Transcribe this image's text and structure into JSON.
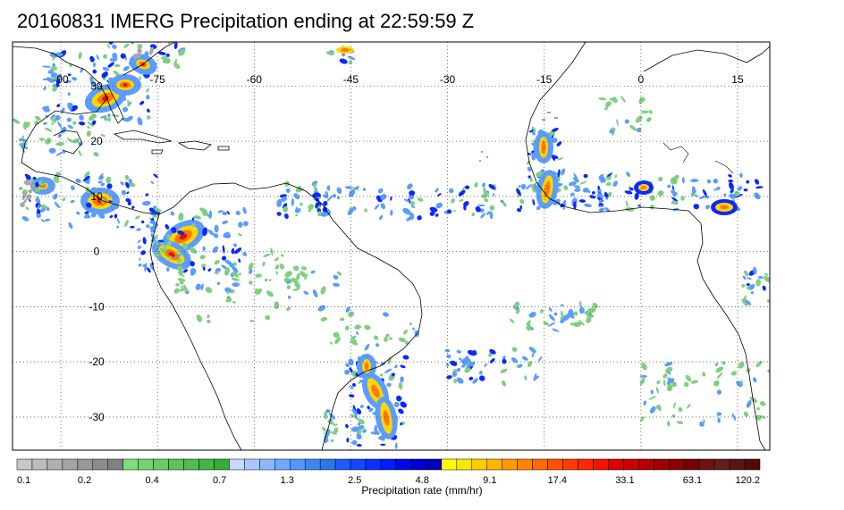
{
  "title": "20160831 IMERG Precipitation ending at 22:59:59 Z",
  "map": {
    "lon_range": [
      -97.5,
      20
    ],
    "lat_range": [
      -36,
      38
    ],
    "lon_labels": [
      "-90",
      "-75",
      "-60",
      "-45",
      "-30",
      "-15",
      "0",
      "15"
    ],
    "lat_labels": [
      "30",
      "20",
      "10",
      "0",
      "-10",
      "-20",
      "-30"
    ],
    "grid": true,
    "coast_color": "#000000"
  },
  "colorbar": {
    "title": "Precipitation rate (mm/hr)",
    "tick_labels": [
      "0.1",
      "0.2",
      "0.4",
      "0.7",
      "1.3",
      "2.5",
      "4.8",
      "9.1",
      "17.4",
      "33.1",
      "63.1",
      "120.2"
    ],
    "colors": [
      "#c8c8c8",
      "#bcbcbc",
      "#b0b0b0",
      "#a4a4a4",
      "#989898",
      "#8c8c8c",
      "#808080",
      "#7fdc7f",
      "#73d473",
      "#67cc67",
      "#5bc45b",
      "#4fbc4f",
      "#43b443",
      "#37ac37",
      "#c8d8ff",
      "#aac8ff",
      "#8cb8ff",
      "#6ea8ff",
      "#5098ff",
      "#3c88f0",
      "#2878e8",
      "#1e5aff",
      "#1446ff",
      "#0a32ff",
      "#001eff",
      "#000ae6",
      "#0000d2",
      "#0000be",
      "#ffff00",
      "#ffe600",
      "#ffcc00",
      "#ffb400",
      "#ff9b00",
      "#ff8200",
      "#ff6900",
      "#ff5000",
      "#ff3c00",
      "#ff2800",
      "#f01400",
      "#dc0000",
      "#c80000",
      "#b40000",
      "#a00000",
      "#8c0000",
      "#780000",
      "#6e1414",
      "#641e1e",
      "#5a1414",
      "#500a0a"
    ]
  },
  "precip_palette": {
    "light": "#7fcf7f",
    "moderate": "#5a9cff",
    "strong": "#0a28ff",
    "heavy": "#ffd700",
    "intense": "#ff7800",
    "extreme": "#e01400",
    "trace": "#a8a8a8"
  }
}
